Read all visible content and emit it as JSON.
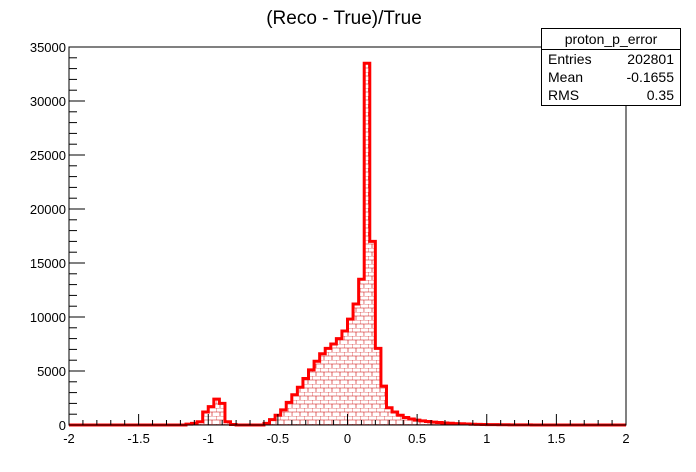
{
  "chart_data": {
    "type": "histogram",
    "title": "(Reco - True)/True",
    "xlabel": "",
    "ylabel": "",
    "xlim": [
      -2,
      2
    ],
    "ylim": [
      0,
      35000
    ],
    "x_ticks": [
      "-2",
      "-1.5",
      "-1",
      "-0.5",
      "0",
      "0.5",
      "1",
      "1.5",
      "2"
    ],
    "y_ticks": [
      "0",
      "5000",
      "10000",
      "15000",
      "20000",
      "25000",
      "30000",
      "35000"
    ],
    "bin_width": 0.04,
    "bin_start": -2,
    "values": [
      0,
      0,
      0,
      0,
      0,
      0,
      0,
      0,
      0,
      0,
      0,
      0,
      0,
      0,
      0,
      0,
      0,
      0,
      0,
      0,
      0,
      80,
      150,
      300,
      1200,
      1700,
      2400,
      2000,
      300,
      50,
      0,
      0,
      0,
      0,
      0,
      150,
      500,
      900,
      1400,
      2100,
      2800,
      3500,
      4300,
      5100,
      5900,
      6600,
      7100,
      7500,
      8000,
      8700,
      9800,
      11200,
      13500,
      33500,
      17000,
      7100,
      3600,
      1600,
      1200,
      900,
      700,
      550,
      450,
      380,
      320,
      270,
      230,
      190,
      160,
      130,
      110,
      90,
      75,
      60,
      50,
      40,
      30,
      25,
      20,
      15,
      10,
      8,
      6,
      5,
      4,
      3,
      3,
      2,
      2,
      1,
      1,
      0,
      0,
      0,
      0,
      0,
      0,
      0,
      0,
      0
    ],
    "series": [
      {
        "name": "proton_p_error",
        "color": "#ff0000"
      }
    ],
    "grid": false,
    "legend": "top-right",
    "stats": {
      "title": "proton_p_error",
      "rows": [
        {
          "label": "Entries",
          "value": "202801"
        },
        {
          "label": "Mean",
          "value": "-0.1655"
        },
        {
          "label": "RMS",
          "value": "0.35"
        }
      ]
    }
  }
}
